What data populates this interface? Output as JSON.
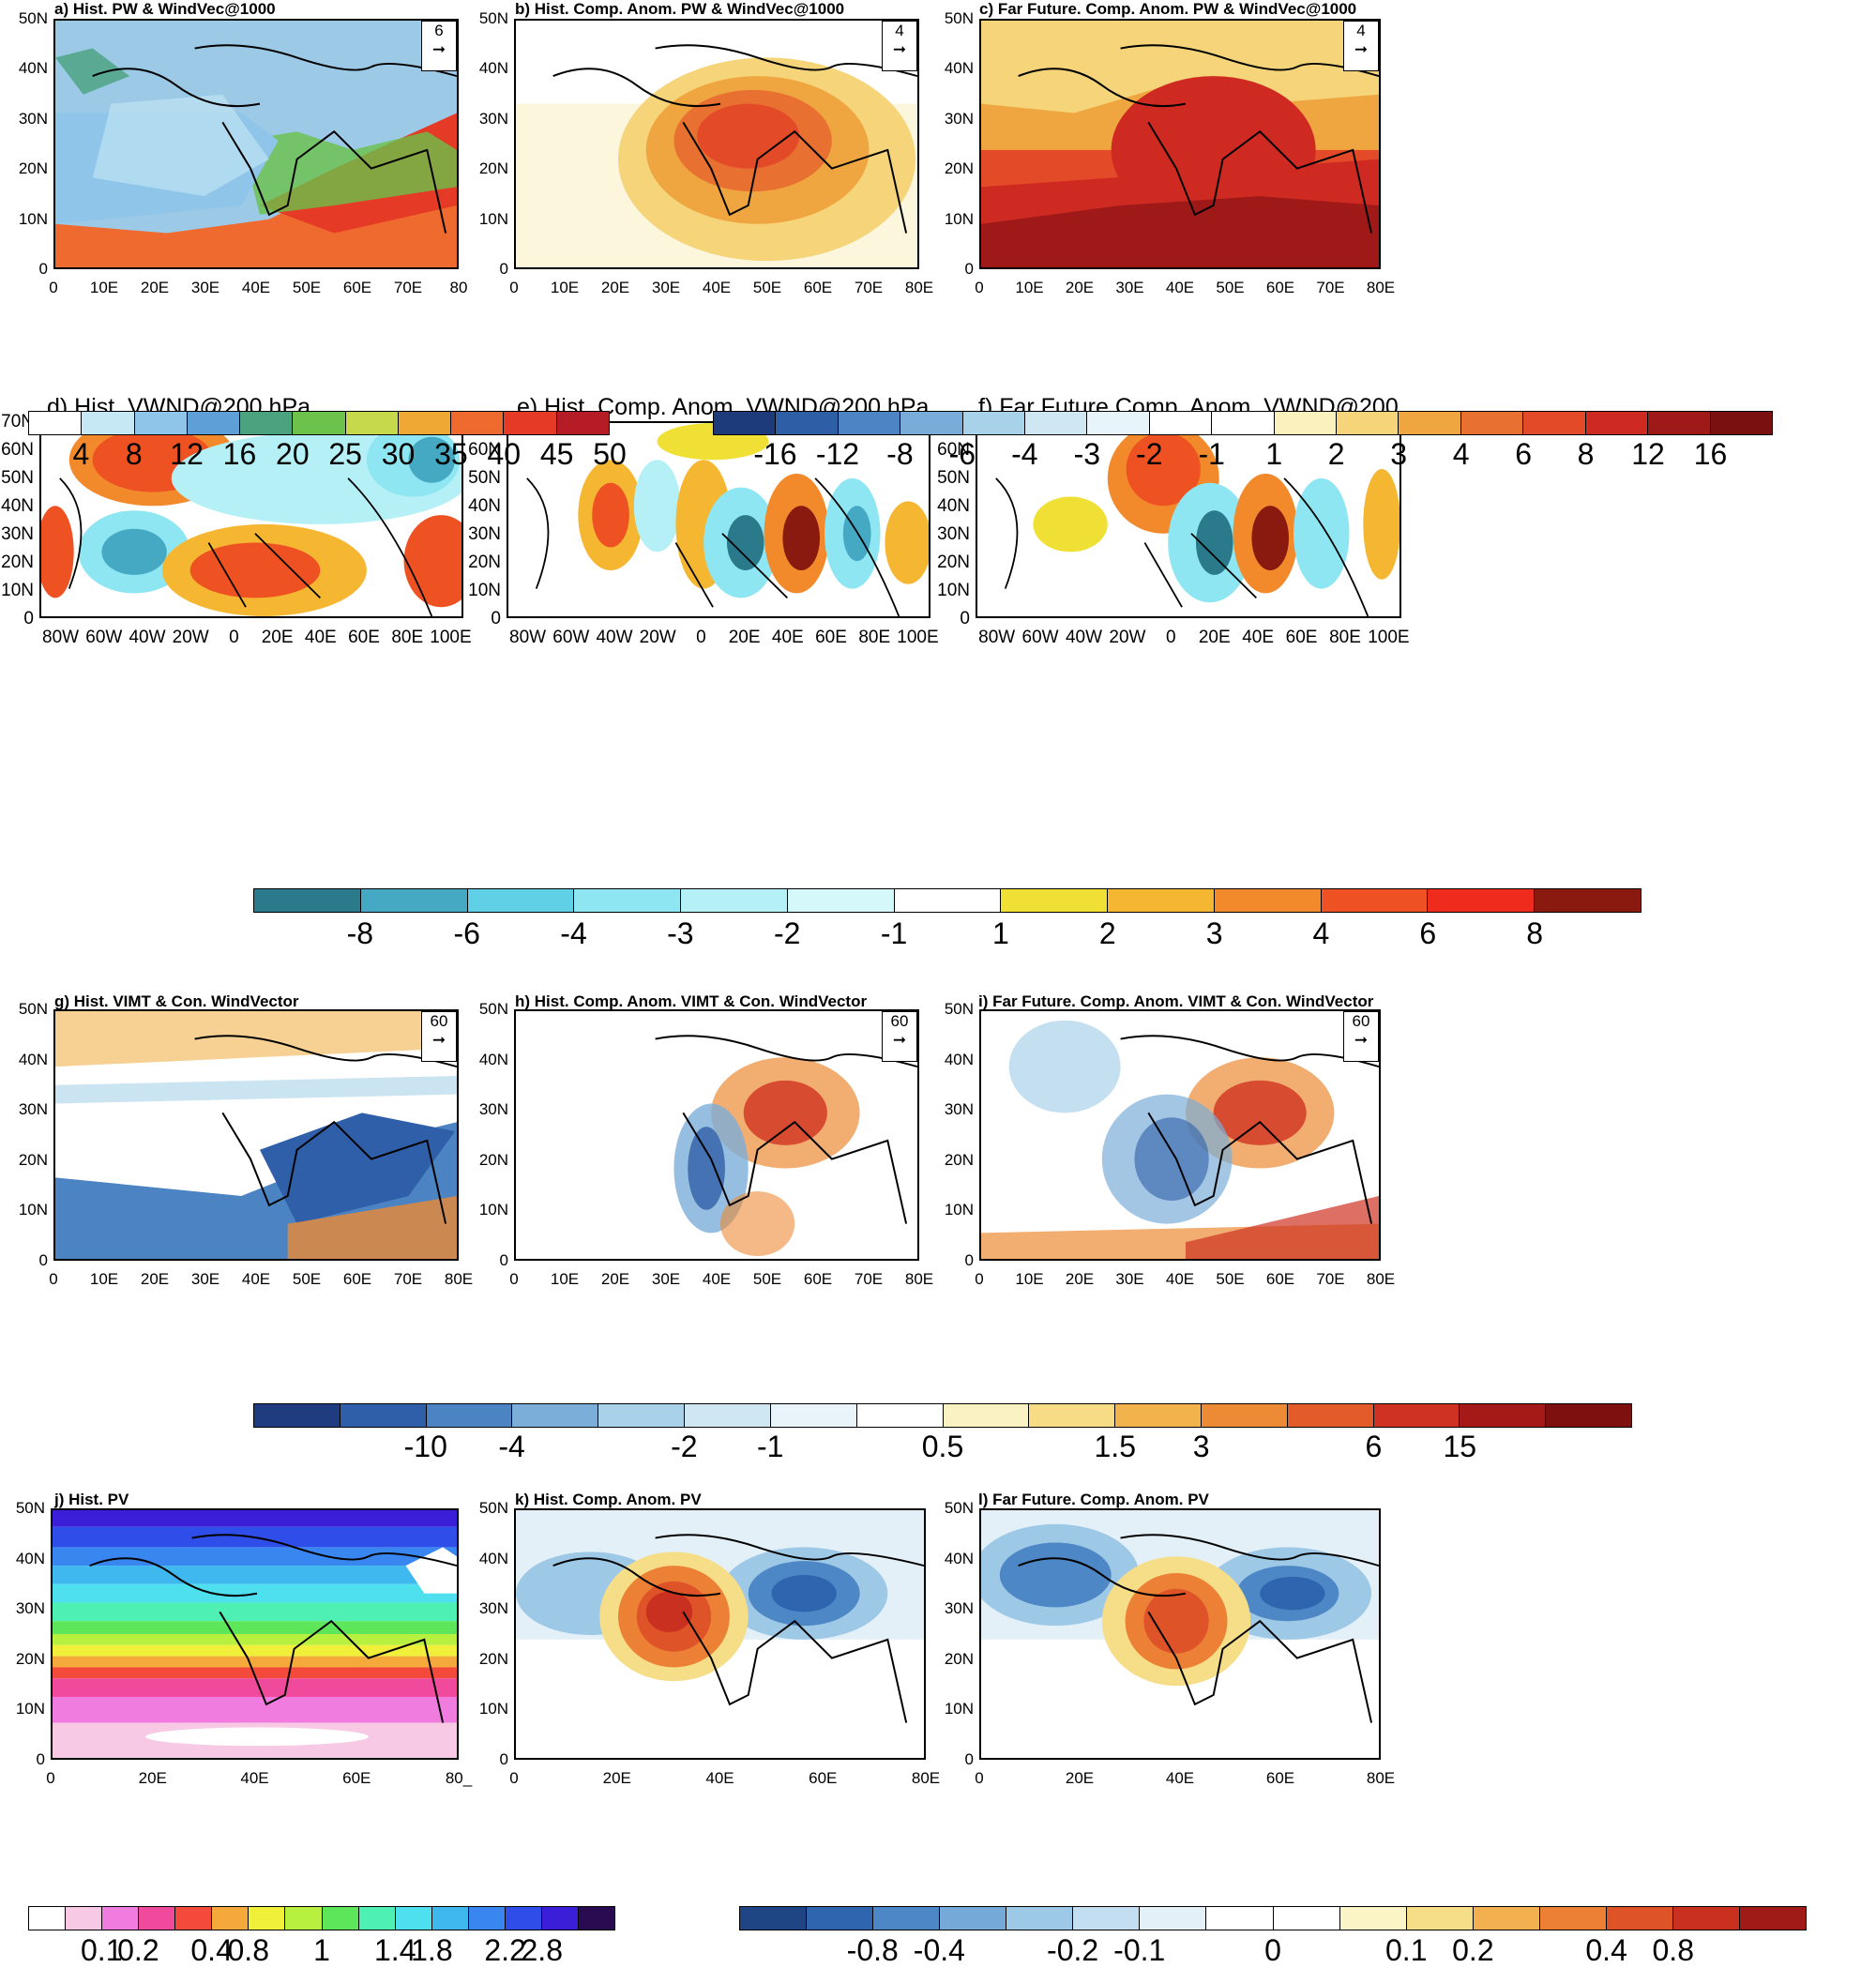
{
  "panels": {
    "a": {
      "title": "a) Hist. PW & WindVec@1000",
      "ref": "6"
    },
    "b": {
      "title": "b) Hist. Comp. Anom. PW & WindVec@1000",
      "ref": "4"
    },
    "c": {
      "title": "c) Far Future. Comp. Anom. PW & WindVec@1000",
      "ref": "4"
    },
    "d": {
      "title": "d) Hist. VWND@200 hPa"
    },
    "e": {
      "title": "e) Hist. Comp. Anom. VWND@200 hPa"
    },
    "f": {
      "title": "f) Far Future Comp. Anom. VWND@200"
    },
    "g": {
      "title": "g) Hist. VIMT & Con. WindVector",
      "ref": "60"
    },
    "h": {
      "title": "h) Hist. Comp. Anom. VIMT & Con. WindVector",
      "ref": "60"
    },
    "i": {
      "title": "i) Far Future. Comp. Anom. VIMT & Con. WindVector",
      "ref": "60"
    },
    "j": {
      "title": "j) Hist. PV"
    },
    "k": {
      "title": "k) Hist. Comp. Anom. PV"
    },
    "l": {
      "title": "l) Far Future. Comp. Anom. PV"
    }
  },
  "axes": {
    "lat50": [
      "50N",
      "40N",
      "30N",
      "20N",
      "10N",
      "0"
    ],
    "lat70": [
      "70N",
      "60N",
      "50N",
      "40N",
      "30N",
      "20N",
      "10N",
      "0"
    ],
    "lon10": [
      "0",
      "10E",
      "20E",
      "30E",
      "40E",
      "50E",
      "60E",
      "70E",
      "80E"
    ],
    "lon10_a": [
      "0",
      "10E",
      "20E",
      "30E",
      "40E",
      "50E",
      "60E",
      "70E",
      "80"
    ],
    "lon20": [
      "0",
      "20E",
      "40E",
      "60E",
      "80E"
    ],
    "lon20_j": [
      "0",
      "20E",
      "40E",
      "60E",
      "80_"
    ],
    "lonW": [
      "80W",
      "60W",
      "40W",
      "20W",
      "0",
      "20E",
      "40E",
      "60E",
      "80E",
      "100E"
    ]
  },
  "colorbars": {
    "pw": {
      "labels": [
        "4",
        "8",
        "12",
        "16",
        "20",
        "25",
        "30",
        "35",
        "40",
        "45",
        "50"
      ],
      "colors": [
        "#ffffff",
        "#c6e8f5",
        "#8ec5e8",
        "#5d9fd6",
        "#4aa37e",
        "#6cc24a",
        "#c6d94a",
        "#f0a835",
        "#ee6a2e",
        "#e53a25",
        "#b51c25"
      ]
    },
    "pwanom": {
      "labels": [
        "-16",
        "-12",
        "-8",
        "-6",
        "-4",
        "-3",
        "-2",
        "-1",
        "1",
        "2",
        "3",
        "4",
        "6",
        "8",
        "12",
        "16"
      ],
      "colors": [
        "#1d3a7a",
        "#2e5ea6",
        "#4c84c4",
        "#79acd9",
        "#a8d1ea",
        "#cfe7f3",
        "#e7f4fa",
        "#ffffff",
        "#ffffff",
        "#fbf1be",
        "#f5d47a",
        "#f0a640",
        "#e87030",
        "#e34a28",
        "#cf2a22",
        "#a01919",
        "#7b1010"
      ]
    },
    "vwnd": {
      "labels": [
        "-8",
        "-6",
        "-4",
        "-3",
        "-2",
        "-1",
        "1",
        "2",
        "3",
        "4",
        "6",
        "8"
      ],
      "colors": [
        "#2b7a8c",
        "#46a9c4",
        "#5fd0e6",
        "#8ee6f2",
        "#b5f0f7",
        "#d5f8fb",
        "#ffffff",
        "#f0e036",
        "#f5b731",
        "#f28a2b",
        "#ee5223",
        "#ee2b1d",
        "#8a1a10"
      ]
    },
    "vimt": {
      "labels": [
        "-10",
        "-4",
        "-2",
        "-1",
        "0.5",
        "1.5",
        "3",
        "6",
        "15"
      ],
      "colors": [
        "#1f3c80",
        "#2f5fa8",
        "#4b83c3",
        "#7baed9",
        "#a9d2ea",
        "#cfe6f3",
        "#e9f4fa",
        "#ffffff",
        "#fbf2c3",
        "#f7dc85",
        "#f2b34c",
        "#ec8a35",
        "#e45b2a",
        "#cf3222",
        "#a51a18",
        "#7e1010"
      ]
    },
    "pv": {
      "labels": [
        "0.1",
        "0.2",
        "0.4",
        "0.8",
        "1",
        "1.4",
        "1.8",
        "2.2",
        "2.8"
      ],
      "colors": [
        "#ffffff",
        "#f7c9e4",
        "#f07ce0",
        "#ef4a9c",
        "#f34a3c",
        "#f5a93a",
        "#f0f03a",
        "#b8f040",
        "#5de65a",
        "#4ef0b4",
        "#4ee0ee",
        "#3fb8f0",
        "#3a86f0",
        "#2f4de8",
        "#3a1ed8",
        "#2a0a50"
      ]
    },
    "pvanom": {
      "labels": [
        "-0.8",
        "-0.4",
        "-0.2",
        "-0.1",
        "0",
        "0.1",
        "0.2",
        "0.4",
        "0.8"
      ],
      "colors": [
        "#1f4585",
        "#2f65ae",
        "#4d87c6",
        "#74a9d8",
        "#9dc8e6",
        "#c2def0",
        "#e3f0f8",
        "#ffffff",
        "#ffffff",
        "#faf4c6",
        "#f6dd88",
        "#f2b050",
        "#ec8136",
        "#df5329",
        "#c9301f",
        "#a01a17"
      ]
    }
  }
}
